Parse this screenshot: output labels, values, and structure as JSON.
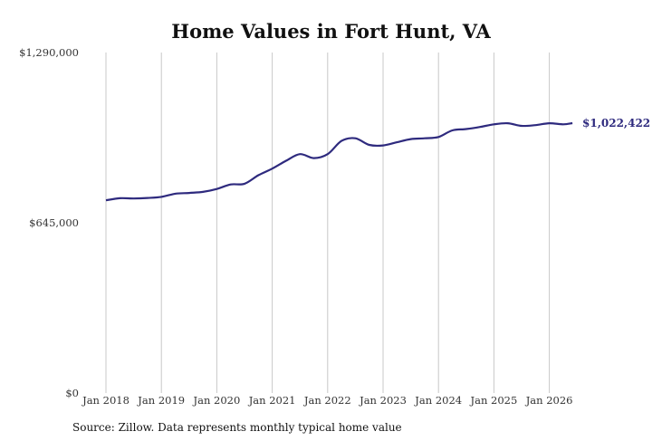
{
  "chart_data": {
    "type": "line",
    "title": "Home Values in Fort Hunt, VA",
    "source": "Source: Zillow. Data represents monthly typical home value",
    "ylim": [
      0,
      1290000
    ],
    "y_ticks": [
      {
        "value": 0,
        "label": "$0"
      },
      {
        "value": 645000,
        "label": "$645,000"
      },
      {
        "value": 1290000,
        "label": "$1,290,000"
      }
    ],
    "x_ticks": [
      {
        "date": "2018-01",
        "label": "Jan 2018"
      },
      {
        "date": "2019-01",
        "label": "Jan 2019"
      },
      {
        "date": "2020-01",
        "label": "Jan 2020"
      },
      {
        "date": "2021-01",
        "label": "Jan 2021"
      },
      {
        "date": "2022-01",
        "label": "Jan 2022"
      },
      {
        "date": "2023-01",
        "label": "Jan 2023"
      },
      {
        "date": "2024-01",
        "label": "Jan 2024"
      },
      {
        "date": "2025-01",
        "label": "Jan 2025"
      },
      {
        "date": "2026-01",
        "label": "Jan 2026"
      }
    ],
    "grid": "vertical",
    "line_color": "#2e2a7e",
    "end_label": "$1,022,422",
    "series": [
      {
        "points": [
          [
            "2018-01",
            730000
          ],
          [
            "2018-04",
            738000
          ],
          [
            "2018-07",
            737000
          ],
          [
            "2018-10",
            739000
          ],
          [
            "2019-01",
            743000
          ],
          [
            "2019-04",
            755000
          ],
          [
            "2019-07",
            758000
          ],
          [
            "2019-10",
            762000
          ],
          [
            "2020-01",
            773000
          ],
          [
            "2020-04",
            790000
          ],
          [
            "2020-07",
            793000
          ],
          [
            "2020-10",
            825000
          ],
          [
            "2021-01",
            850000
          ],
          [
            "2021-04",
            880000
          ],
          [
            "2021-07",
            905000
          ],
          [
            "2021-10",
            890000
          ],
          [
            "2022-01",
            905000
          ],
          [
            "2022-04",
            955000
          ],
          [
            "2022-07",
            965000
          ],
          [
            "2022-10",
            940000
          ],
          [
            "2023-01",
            938000
          ],
          [
            "2023-04",
            950000
          ],
          [
            "2023-07",
            962000
          ],
          [
            "2023-10",
            965000
          ],
          [
            "2024-01",
            970000
          ],
          [
            "2024-04",
            995000
          ],
          [
            "2024-07",
            1000000
          ],
          [
            "2024-10",
            1008000
          ],
          [
            "2025-01",
            1018000
          ],
          [
            "2025-04",
            1022000
          ],
          [
            "2025-07",
            1012000
          ],
          [
            "2025-10",
            1015000
          ],
          [
            "2026-01",
            1022000
          ],
          [
            "2026-04",
            1018000
          ],
          [
            "2026-06",
            1022422
          ]
        ]
      }
    ]
  }
}
